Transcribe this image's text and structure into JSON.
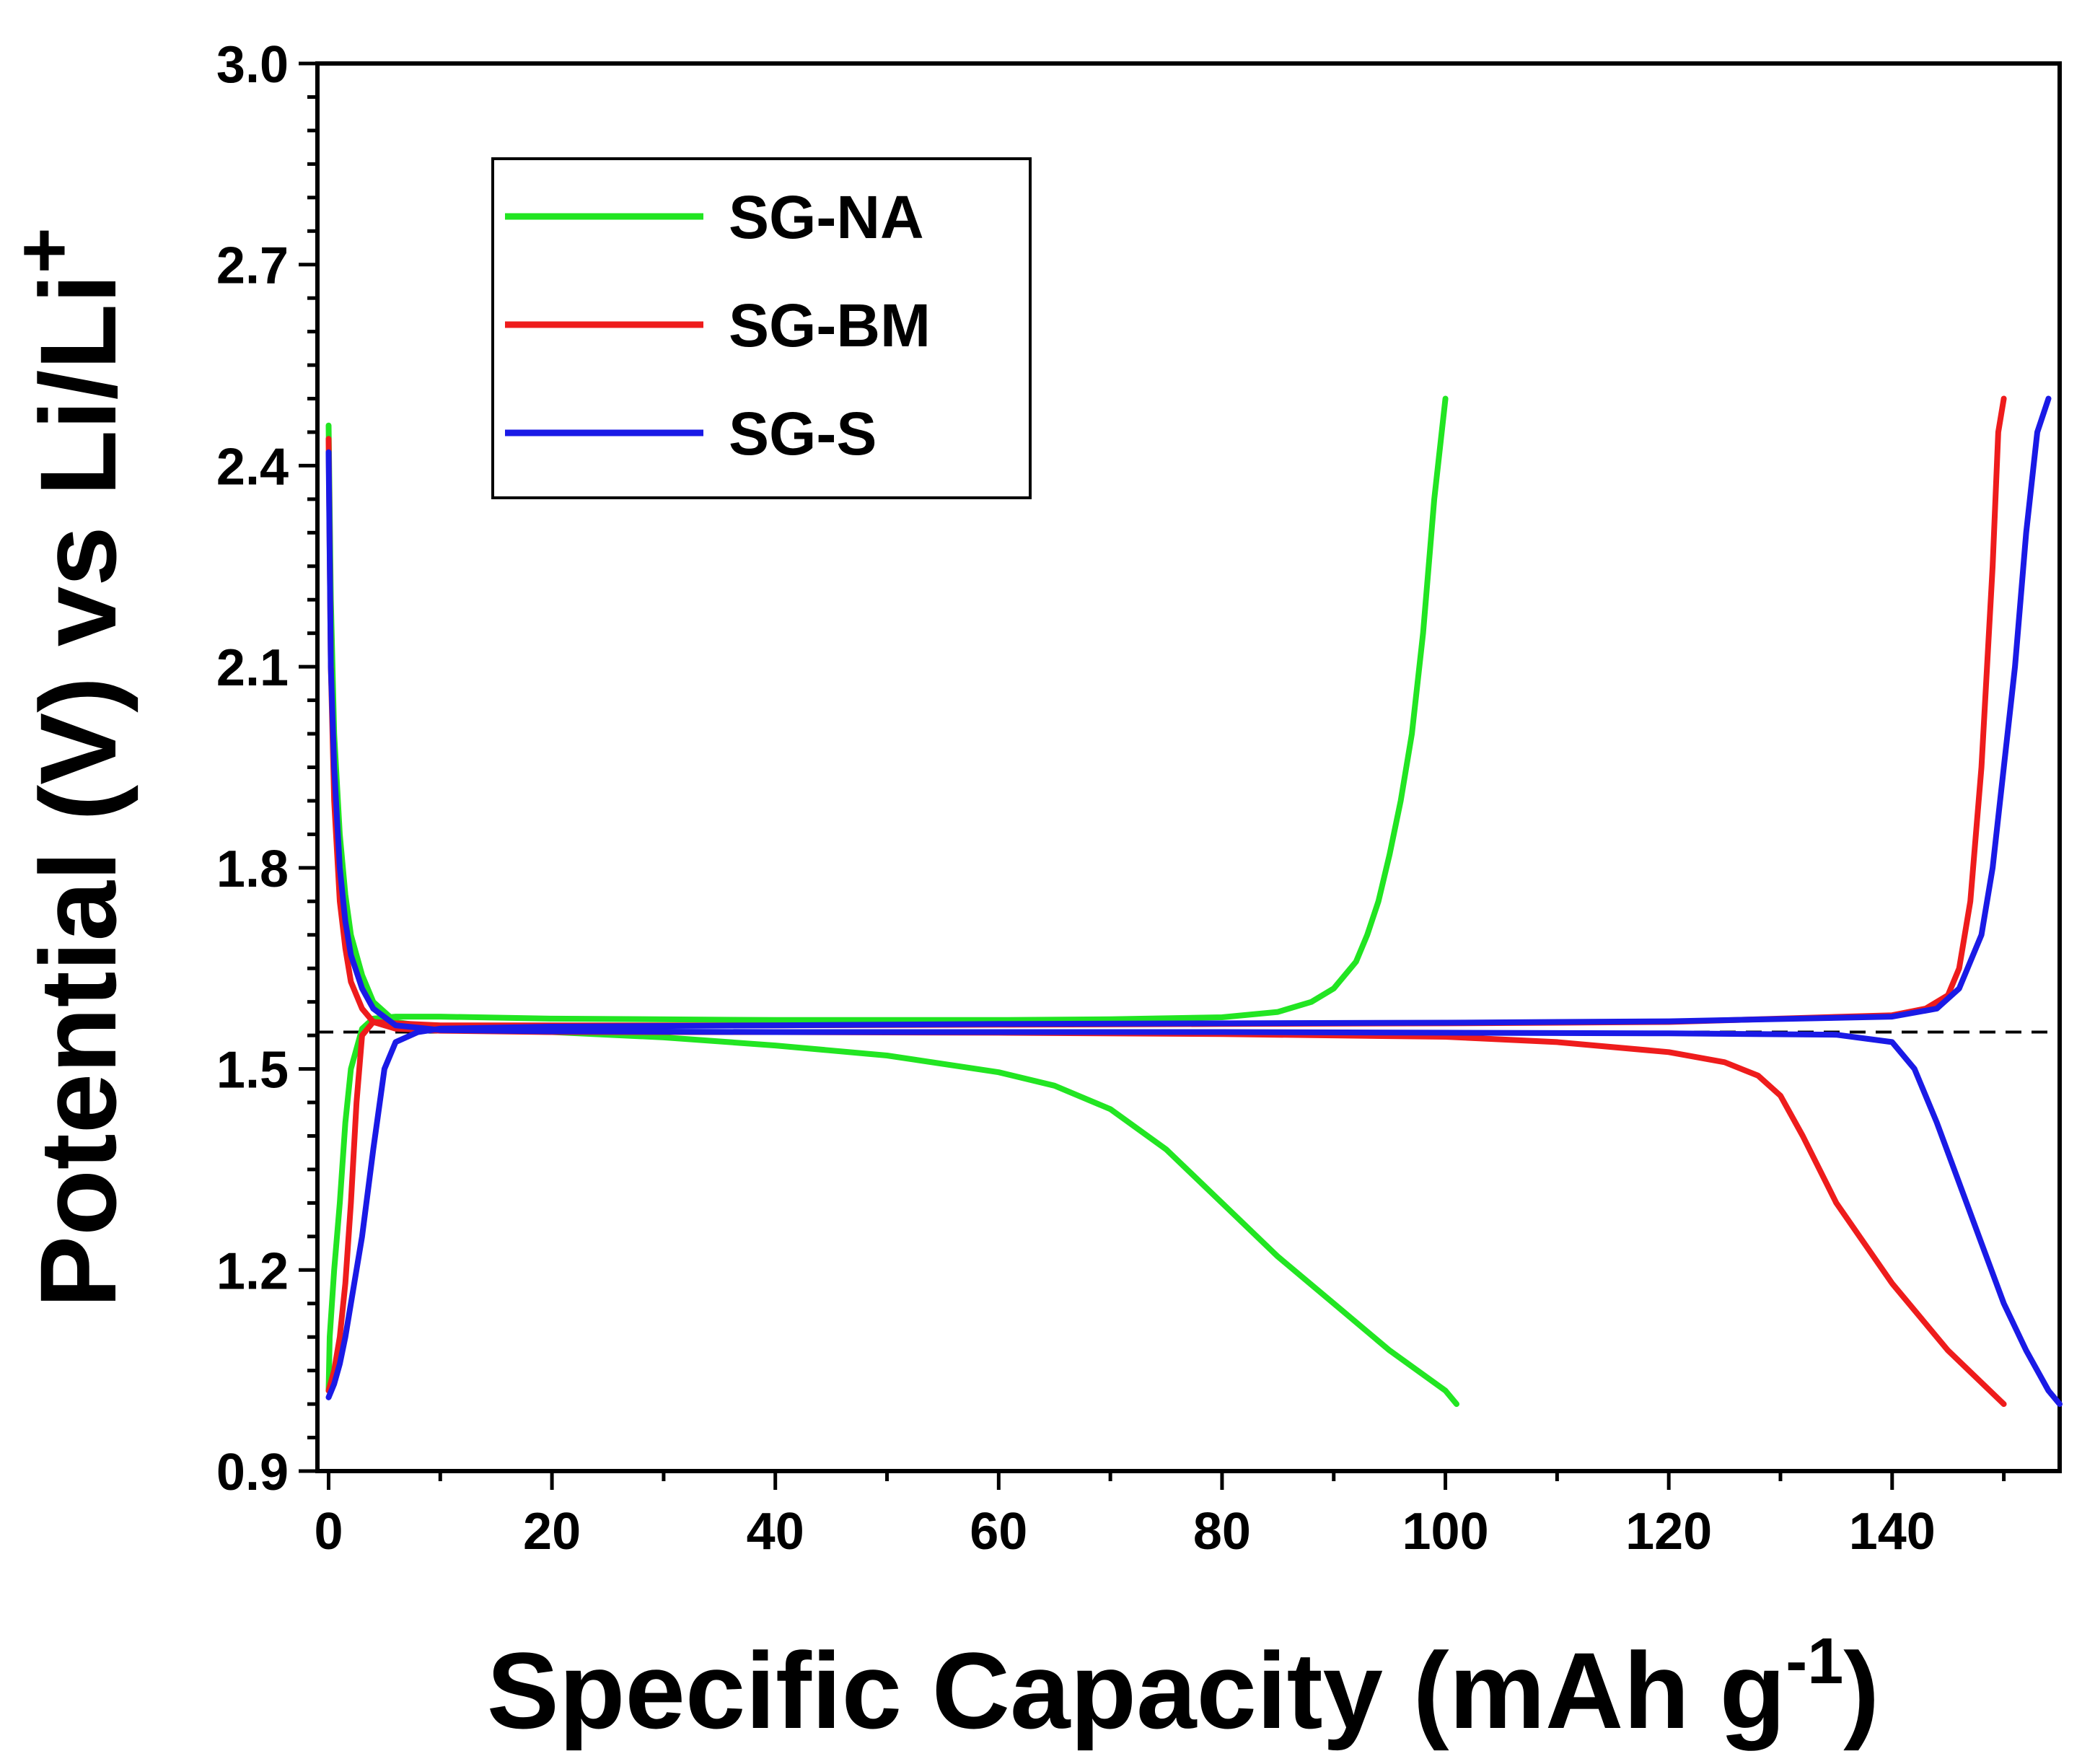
{
  "chart_data": {
    "type": "line",
    "title": "",
    "xlabel": "Specific Capacity (mAh g",
    "xlabel_superscript": "-1",
    "xlabel_suffix": ")",
    "ylabel": "Potential (V) vs Li/Li",
    "ylabel_superscript": "+",
    "xlim": [
      -1,
      155
    ],
    "ylim": [
      0.9,
      3.0
    ],
    "x_ticks": [
      0,
      20,
      40,
      60,
      80,
      100,
      120,
      140
    ],
    "x_tick_labels": [
      "0",
      "20",
      "40",
      "60",
      "80",
      "100",
      "120",
      "140"
    ],
    "y_ticks": [
      0.9,
      1.2,
      1.5,
      1.8,
      2.1,
      2.4,
      2.7,
      3.0
    ],
    "y_tick_labels": [
      "0.9",
      "1.2",
      "1.5",
      "1.8",
      "2.1",
      "2.4",
      "2.7",
      "3.0"
    ],
    "grid": false,
    "legend_position": "top-left",
    "reference_line": {
      "y": 1.555,
      "style": "dashed",
      "color": "#000000"
    },
    "series": [
      {
        "name": "SG-NA",
        "color": "#22e522",
        "charge": {
          "x": [
            0,
            0.1,
            0.5,
            1,
            1.5,
            2,
            3,
            4,
            6,
            10,
            20,
            40,
            60,
            70,
            80,
            85,
            88,
            90,
            92,
            93,
            94,
            95,
            96,
            97,
            98,
            99,
            100
          ],
          "y": [
            1.02,
            1.1,
            1.2,
            1.3,
            1.42,
            1.5,
            1.56,
            1.575,
            1.578,
            1.578,
            1.575,
            1.573,
            1.573,
            1.574,
            1.577,
            1.585,
            1.6,
            1.62,
            1.66,
            1.7,
            1.75,
            1.82,
            1.9,
            2.0,
            2.15,
            2.35,
            2.5
          ]
        },
        "discharge": {
          "x": [
            0,
            0.2,
            0.5,
            1,
            1.5,
            2,
            3,
            4,
            6,
            10,
            20,
            30,
            40,
            50,
            60,
            65,
            70,
            75,
            80,
            85,
            90,
            95,
            100,
            101
          ],
          "y": [
            2.46,
            2.2,
            2.0,
            1.85,
            1.76,
            1.7,
            1.64,
            1.6,
            1.57,
            1.56,
            1.555,
            1.547,
            1.535,
            1.52,
            1.495,
            1.475,
            1.44,
            1.38,
            1.3,
            1.22,
            1.15,
            1.08,
            1.02,
            1.0
          ]
        }
      },
      {
        "name": "SG-BM",
        "color": "#ee1c1c",
        "charge": {
          "x": [
            0,
            0.5,
            1,
            1.5,
            2,
            2.5,
            3,
            4,
            6,
            10,
            20,
            40,
            60,
            80,
            100,
            120,
            140,
            143,
            145,
            146,
            147,
            148,
            149,
            149.5,
            150
          ],
          "y": [
            1.02,
            1.05,
            1.1,
            1.18,
            1.3,
            1.45,
            1.55,
            1.57,
            1.568,
            1.565,
            1.565,
            1.565,
            1.566,
            1.567,
            1.568,
            1.57,
            1.58,
            1.59,
            1.61,
            1.65,
            1.75,
            1.95,
            2.25,
            2.45,
            2.5
          ]
        },
        "discharge": {
          "x": [
            0,
            0.2,
            0.5,
            1,
            1.5,
            2,
            3,
            4,
            6,
            10,
            20,
            40,
            60,
            80,
            100,
            110,
            120,
            125,
            128,
            130,
            132,
            135,
            140,
            145,
            150
          ],
          "y": [
            2.44,
            2.1,
            1.9,
            1.75,
            1.68,
            1.63,
            1.59,
            1.57,
            1.56,
            1.557,
            1.555,
            1.555,
            1.554,
            1.552,
            1.548,
            1.54,
            1.525,
            1.51,
            1.49,
            1.46,
            1.4,
            1.3,
            1.18,
            1.08,
            1.0
          ]
        }
      },
      {
        "name": "SG-S",
        "color": "#1a1ae6",
        "charge": {
          "x": [
            0,
            0.5,
            1,
            1.5,
            2,
            3,
            4,
            5,
            6,
            8,
            10,
            20,
            40,
            60,
            80,
            100,
            120,
            140,
            144,
            146,
            148,
            149,
            150,
            151,
            152,
            153,
            154
          ],
          "y": [
            1.01,
            1.03,
            1.06,
            1.1,
            1.15,
            1.25,
            1.38,
            1.5,
            1.54,
            1.555,
            1.56,
            1.563,
            1.565,
            1.567,
            1.568,
            1.569,
            1.571,
            1.578,
            1.59,
            1.62,
            1.7,
            1.8,
            1.95,
            2.1,
            2.3,
            2.45,
            2.5
          ]
        },
        "discharge": {
          "x": [
            0,
            0.2,
            0.5,
            1,
            1.5,
            2,
            3,
            4,
            6,
            10,
            20,
            40,
            60,
            80,
            100,
            120,
            135,
            140,
            142,
            144,
            146,
            148,
            150,
            152,
            154,
            155
          ],
          "y": [
            2.42,
            2.1,
            1.95,
            1.8,
            1.72,
            1.67,
            1.62,
            1.59,
            1.565,
            1.558,
            1.556,
            1.555,
            1.555,
            1.555,
            1.554,
            1.553,
            1.551,
            1.54,
            1.5,
            1.42,
            1.33,
            1.24,
            1.15,
            1.08,
            1.02,
            1.0
          ]
        }
      }
    ]
  }
}
